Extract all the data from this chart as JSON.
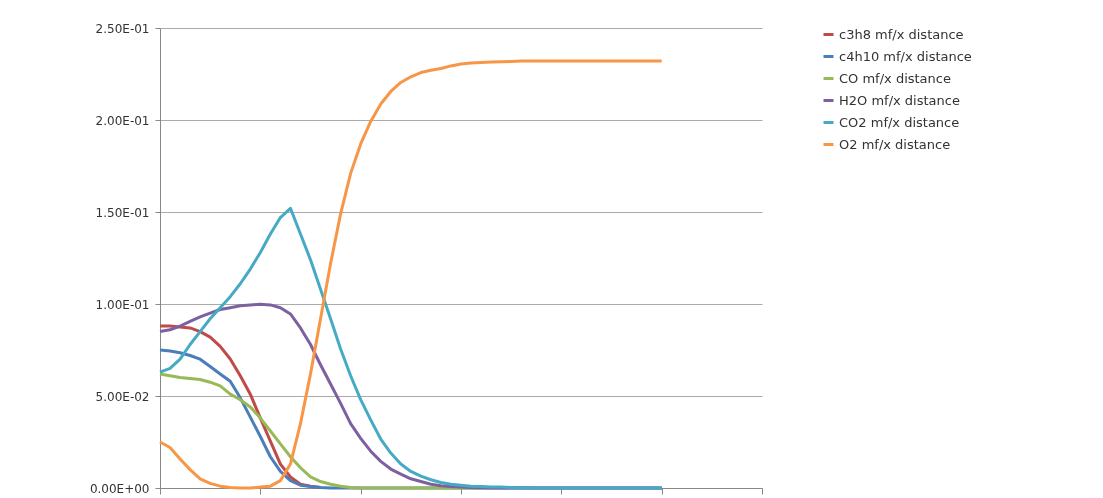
{
  "chart_data": {
    "type": "line",
    "categories": [
      null,
      null,
      null,
      null,
      null,
      null,
      null,
      null,
      null,
      null,
      null,
      null,
      null,
      null,
      null,
      null,
      null,
      null,
      null,
      null,
      null,
      null,
      null,
      null,
      null,
      null,
      null,
      null,
      null,
      null,
      null,
      null,
      null,
      null,
      null,
      null,
      null,
      null,
      null,
      null,
      null,
      null,
      null,
      null,
      null,
      null,
      null,
      null,
      null,
      null,
      null,
      null,
      null,
      null,
      null,
      null,
      null,
      null,
      null,
      null,
      null
    ],
    "series": [
      {
        "name": "c3h8 mf/x distance",
        "color": "#be4b48",
        "values": [
          0.088,
          0.088,
          0.0875,
          0.087,
          0.085,
          0.082,
          0.077,
          0.0701,
          0.061,
          0.051,
          0.038,
          0.0255,
          0.013,
          0.006,
          0.002,
          0.001,
          0.0003,
          null,
          null,
          null,
          null,
          null,
          null,
          null,
          null,
          null,
          null,
          null,
          null,
          null,
          null,
          null,
          null,
          null,
          null,
          null,
          null,
          null,
          null,
          null,
          null,
          null,
          null,
          null,
          null,
          null,
          null,
          null,
          null,
          null,
          null,
          null,
          null,
          null,
          null,
          null,
          null,
          null,
          null,
          null,
          null
        ]
      },
      {
        "name": "c4h10 mf/x distance",
        "color": "#4a7ebb",
        "values": [
          0.075,
          0.0745,
          0.0735,
          0.072,
          0.07,
          0.066,
          0.062,
          0.058,
          0.049,
          0.0385,
          0.028,
          0.017,
          0.009,
          0.004,
          0.0015,
          0.0008,
          0.0003,
          0,
          0,
          0,
          0,
          0,
          0,
          0,
          0,
          0,
          0,
          0,
          0,
          0,
          0,
          0,
          0,
          0,
          0,
          0,
          0,
          0,
          0,
          0,
          0,
          0,
          0,
          0,
          0,
          0,
          0,
          0,
          0,
          0,
          0,
          null,
          null,
          null,
          null,
          null,
          null,
          null,
          null,
          null,
          null
        ]
      },
      {
        "name": "CO mf/x distance",
        "color": "#98b954",
        "values": [
          0.062,
          0.061,
          0.06,
          0.0595,
          0.059,
          0.0575,
          0.0555,
          0.051,
          0.048,
          0.044,
          0.038,
          0.031,
          0.024,
          0.017,
          0.011,
          0.006,
          0.0035,
          0.002,
          0.001,
          0.0003,
          0,
          0,
          0,
          0,
          0,
          0,
          0,
          0,
          0,
          0,
          0,
          0,
          0,
          null,
          null,
          null,
          null,
          null,
          null,
          null,
          null,
          null,
          null,
          null,
          null,
          null,
          null,
          null,
          null,
          null,
          null,
          null,
          null,
          null,
          null,
          null,
          null,
          null,
          null,
          null,
          null
        ]
      },
      {
        "name": "H2O mf/x distance",
        "color": "#7d60a0",
        "values": [
          0.085,
          0.086,
          0.088,
          0.0905,
          0.093,
          0.095,
          0.097,
          0.098,
          0.099,
          0.0995,
          0.0998,
          0.0995,
          0.098,
          0.0946,
          0.087,
          0.078,
          0.067,
          0.0565,
          0.046,
          0.035,
          0.027,
          0.02,
          0.0145,
          0.0103,
          0.0075,
          0.005,
          0.0035,
          0.002,
          0.0012,
          0.0008,
          0.0005,
          0.0003,
          0.0001,
          0,
          0,
          0,
          0,
          0,
          0,
          0,
          0,
          0,
          0,
          0,
          0,
          0,
          0,
          0,
          0,
          0,
          0,
          null,
          null,
          null,
          null,
          null,
          null,
          null,
          null,
          null,
          null
        ]
      },
      {
        "name": "CO2 mf/x distance",
        "color": "#46aac5",
        "values": [
          0.063,
          0.065,
          0.07,
          0.078,
          0.085,
          0.092,
          0.098,
          0.104,
          0.111,
          0.119,
          0.128,
          0.138,
          0.147,
          0.152,
          0.138,
          0.124,
          0.108,
          0.092,
          0.0755,
          0.061,
          0.048,
          0.037,
          0.0266,
          0.019,
          0.013,
          0.009,
          0.0065,
          0.0045,
          0.003,
          0.002,
          0.0015,
          0.001,
          0.0008,
          0.0006,
          0.0005,
          0.0003,
          0.0002,
          0.0001,
          0,
          0,
          0,
          0,
          0,
          0,
          0,
          0,
          0,
          0,
          0,
          0,
          0,
          null,
          null,
          null,
          null,
          null,
          null,
          null,
          null,
          null,
          null
        ]
      },
      {
        "name": "O2 mf/x distance",
        "color": "#f79646",
        "values": [
          0.025,
          0.022,
          0.0158,
          0.01,
          0.005,
          0.0025,
          0.001,
          0.0003,
          0,
          0,
          0.0005,
          0.001,
          0.004,
          0.013,
          0.035,
          0.062,
          0.092,
          0.122,
          0.149,
          0.171,
          0.187,
          0.1992,
          0.2087,
          0.2155,
          0.2204,
          0.2235,
          0.2258,
          0.227,
          0.228,
          0.2294,
          0.2304,
          0.231,
          0.2313,
          0.2315,
          0.2317,
          0.2318,
          0.232,
          0.232,
          0.232,
          0.232,
          0.232,
          0.232,
          0.232,
          0.232,
          0.232,
          0.232,
          0.232,
          0.232,
          0.232,
          0.232,
          0.232,
          null,
          null,
          null,
          null,
          null,
          null,
          null,
          null,
          null,
          null
        ]
      }
    ],
    "ylim": [
      0,
      0.25
    ],
    "yticks": [
      {
        "value": 0,
        "label": "0.00E+00"
      },
      {
        "value": 0.05,
        "label": "5.00E-02"
      },
      {
        "value": 0.1,
        "label": "1.00E-01"
      },
      {
        "value": 0.15,
        "label": "1.50E-01"
      },
      {
        "value": 0.2,
        "label": "2.00E-01"
      },
      {
        "value": 0.25,
        "label": "2.50E-01"
      }
    ],
    "grid": "y",
    "legend": "right",
    "marker": "none",
    "line_style": "solid",
    "tick_labels": "y"
  }
}
